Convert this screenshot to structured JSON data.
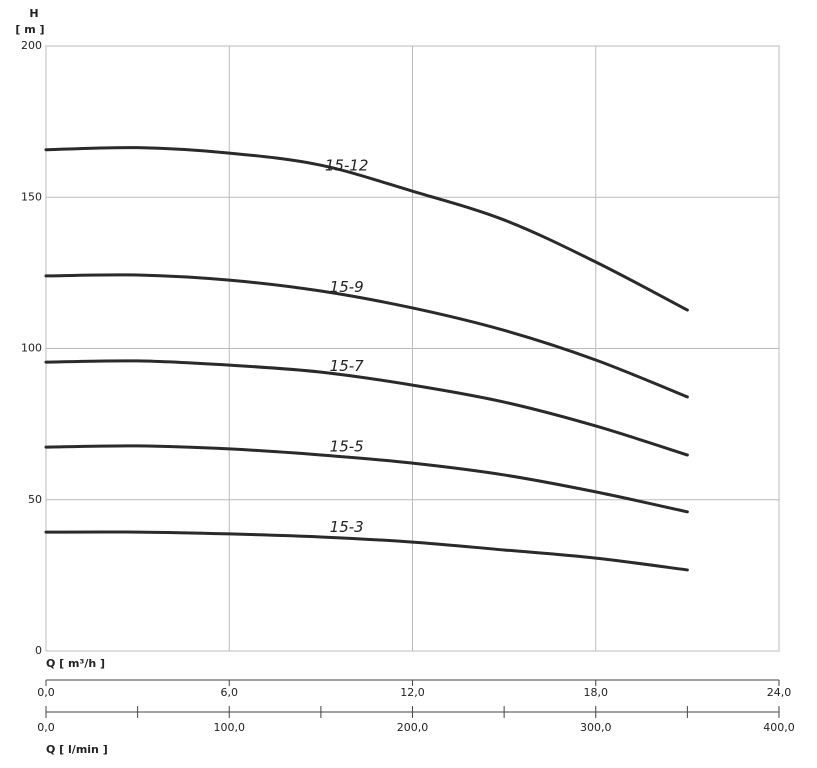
{
  "chart_data": {
    "type": "line",
    "y_label": "H",
    "y_unit": "[ m ]",
    "x_label": "Q [ m³/h ]",
    "x2_label": "Q [ l/min ]",
    "x": [
      0,
      3,
      6,
      9,
      12,
      15,
      18,
      21
    ],
    "series": [
      {
        "name": "15-12",
        "color": "#2a2a2a",
        "values": [
          165.7,
          166.4,
          164.6,
          160.6,
          152,
          142.5,
          128.6,
          112.7
        ]
      },
      {
        "name": "15-9",
        "color": "#2a2a2a",
        "values": [
          124,
          124.3,
          122.6,
          119,
          113.4,
          106,
          96.2,
          84
        ]
      },
      {
        "name": "15-7",
        "color": "#2a2a2a",
        "values": [
          95.5,
          95.9,
          94.5,
          92.2,
          87.9,
          82.3,
          74.4,
          64.8
        ]
      },
      {
        "name": "15-5",
        "color": "#2a2a2a",
        "values": [
          67.4,
          67.8,
          66.8,
          64.8,
          62.1,
          58.2,
          52.6,
          46
        ]
      },
      {
        "name": "15-3",
        "color": "#2a2a2a",
        "values": [
          39.3,
          39.3,
          38.7,
          37.7,
          36,
          33.4,
          30.7,
          26.8
        ]
      }
    ],
    "xlim": [
      0,
      24
    ],
    "xticks": [
      {
        "value": 0,
        "label": "0,0"
      },
      {
        "value": 6,
        "label": "6,0"
      },
      {
        "value": 12,
        "label": "12,0"
      },
      {
        "value": 18,
        "label": "18,0"
      },
      {
        "value": 24,
        "label": "24,0"
      }
    ],
    "x2lim": [
      0,
      400
    ],
    "x2ticks": [
      {
        "value": 0,
        "label": "0,0"
      },
      {
        "value": 100,
        "label": "100,0"
      },
      {
        "value": 200,
        "label": "200,0"
      },
      {
        "value": 300,
        "label": "300,0"
      },
      {
        "value": 400,
        "label": "400,0"
      }
    ],
    "x2minor_ticks": [
      50,
      150,
      250,
      350
    ],
    "ylim": [
      0,
      200
    ],
    "yticks": [
      0,
      50,
      100,
      150,
      200
    ],
    "grid": true
  }
}
